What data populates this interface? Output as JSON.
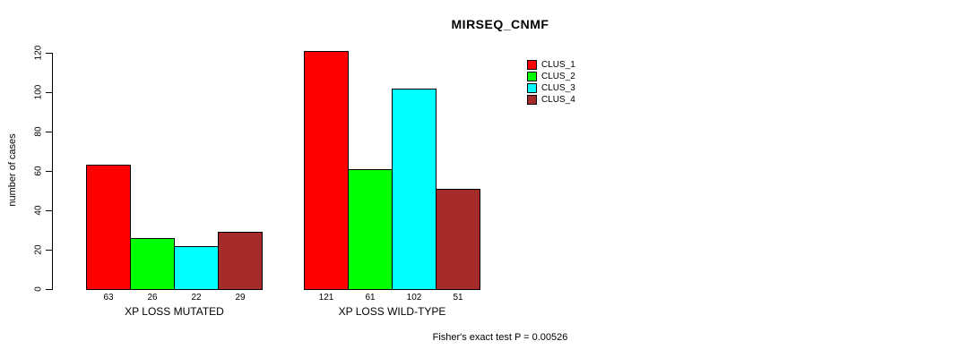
{
  "chart_data": {
    "type": "bar",
    "title": "MIRSEQ_CNMF",
    "ylabel": "number of cases",
    "ylim": [
      0,
      120
    ],
    "y_ticks": [
      0,
      20,
      40,
      60,
      80,
      100,
      120
    ],
    "categories": [
      "XP LOSS MUTATED",
      "XP LOSS WILD-TYPE"
    ],
    "series": [
      {
        "name": "CLUS_1",
        "color": "#ff0000",
        "values": [
          63,
          121
        ]
      },
      {
        "name": "CLUS_2",
        "color": "#00ff00",
        "values": [
          26,
          61
        ]
      },
      {
        "name": "CLUS_3",
        "color": "#00ffff",
        "values": [
          22,
          102
        ]
      },
      {
        "name": "CLUS_4",
        "color": "#a52a2a",
        "values": [
          29,
          51
        ]
      }
    ],
    "legend": {
      "position": "top-right",
      "entries": [
        "CLUS_1",
        "CLUS_2",
        "CLUS_3",
        "CLUS_4"
      ]
    },
    "annotation": "Fisher's exact test P = 0.00526",
    "grid": false,
    "background": "#ffffff"
  }
}
